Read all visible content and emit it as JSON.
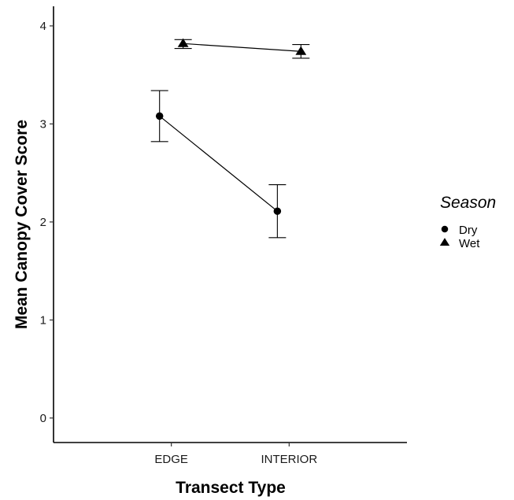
{
  "chart_data": {
    "type": "line",
    "xlabel": "Transect Type",
    "ylabel": "Mean Canopy Cover Score",
    "categories": [
      "EDGE",
      "INTERIOR"
    ],
    "ylim": [
      -0.25,
      4.2
    ],
    "yticks": [
      0,
      1,
      2,
      3,
      4
    ],
    "dodge": 0.1,
    "grid": false,
    "legend": {
      "title": "Season",
      "position": "right"
    },
    "series": [
      {
        "name": "Dry",
        "marker": "circle",
        "color": "#000000",
        "values": [
          3.08,
          2.11
        ],
        "lower": [
          2.82,
          1.84
        ],
        "upper": [
          3.34,
          2.38
        ]
      },
      {
        "name": "Wet",
        "marker": "triangle",
        "color": "#000000",
        "values": [
          3.82,
          3.74
        ],
        "lower": [
          3.77,
          3.67
        ],
        "upper": [
          3.86,
          3.81
        ]
      }
    ]
  }
}
